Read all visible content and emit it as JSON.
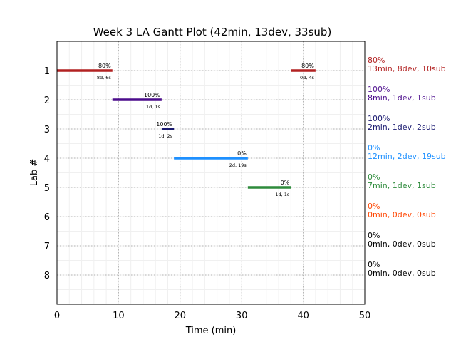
{
  "chart_data": {
    "type": "gantt",
    "title": "Week 3 LA Gantt Plot (42min, 13dev, 33sub)",
    "xlabel": "Time (min)",
    "ylabel": "Lab #",
    "xlim": [
      0,
      50
    ],
    "ylim": [
      0,
      9
    ],
    "xticks": [
      "0",
      "10",
      "20",
      "30",
      "40",
      "50"
    ],
    "yticks": [
      "1",
      "2",
      "3",
      "4",
      "5",
      "6",
      "7",
      "8"
    ],
    "grid": true,
    "bars": [
      {
        "lab": 1,
        "start": 0,
        "end": 9,
        "color": "#b22222",
        "pct": "80%",
        "dur": "8d, 6s"
      },
      {
        "lab": 1,
        "start": 38,
        "end": 42,
        "color": "#b22222",
        "pct": "80%",
        "dur": "0d, 4s"
      },
      {
        "lab": 2,
        "start": 9,
        "end": 17,
        "color": "#4b0c8c",
        "pct": "100%",
        "dur": "1d, 1s"
      },
      {
        "lab": 3,
        "start": 17,
        "end": 19,
        "color": "#191970",
        "pct": "100%",
        "dur": "1d, 2s"
      },
      {
        "lab": 4,
        "start": 19,
        "end": 31,
        "color": "#1e90ff",
        "pct": "0%",
        "dur": "2d, 19s"
      },
      {
        "lab": 5,
        "start": 31,
        "end": 38,
        "color": "#2e8b3c",
        "pct": "0%",
        "dur": "1d, 1s"
      }
    ],
    "side_labels": [
      {
        "lab": 1,
        "pct": "80%",
        "stats": "13min, 8dev, 10sub",
        "color": "#b22222"
      },
      {
        "lab": 2,
        "pct": "100%",
        "stats": "8min, 1dev, 1sub",
        "color": "#4b0c8c"
      },
      {
        "lab": 3,
        "pct": "100%",
        "stats": "2min, 1dev, 2sub",
        "color": "#191970"
      },
      {
        "lab": 4,
        "pct": "0%",
        "stats": "12min, 2dev, 19sub",
        "color": "#1e90ff"
      },
      {
        "lab": 5,
        "pct": "0%",
        "stats": "7min, 1dev, 1sub",
        "color": "#2e8b3c"
      },
      {
        "lab": 6,
        "pct": "0%",
        "stats": "0min, 0dev, 0sub",
        "color": "#ff4500"
      },
      {
        "lab": 7,
        "pct": "0%",
        "stats": "0min, 0dev, 0sub",
        "color": "#000000"
      },
      {
        "lab": 8,
        "pct": "0%",
        "stats": "0min, 0dev, 0sub",
        "color": "#000000"
      }
    ]
  }
}
